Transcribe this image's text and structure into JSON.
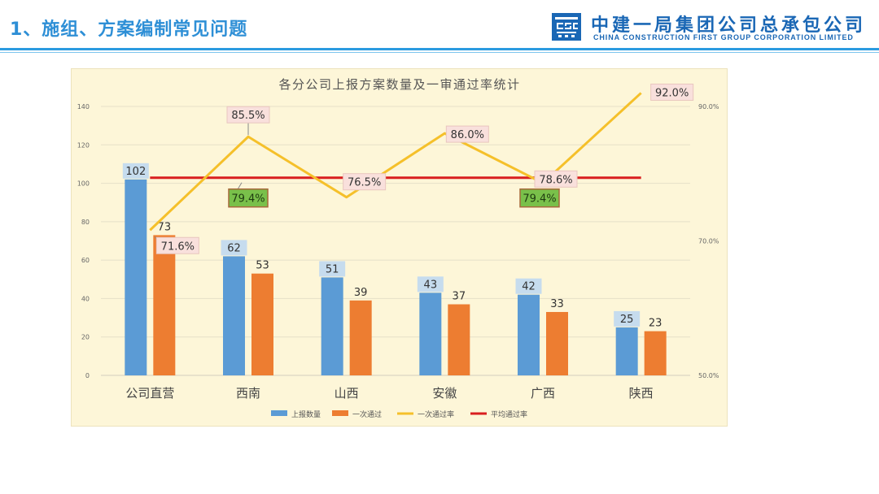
{
  "header": {
    "title": "1、施组、方案编制常见问题",
    "brand_cn": "中建一局集团公司总承包公司",
    "brand_en": "CHINA CONSTRUCTION FIRST GROUP CORPORATION LIMITED",
    "logo_icon": "cscec-logo-icon"
  },
  "colors": {
    "accent": "#2b9be0",
    "brand": "#1a67b5",
    "bar_reported": "#5b9bd5",
    "bar_passed": "#ed7d31",
    "line_rate": "#f5c02a",
    "line_avg": "#d91f1f"
  },
  "chart_data": {
    "type": "bar",
    "title": "各分公司上报方案数量及一审通过率统计",
    "categories": [
      "公司直营",
      "西南",
      "山西",
      "安徽",
      "广西",
      "陕西"
    ],
    "series": [
      {
        "name": "上报数量",
        "values": [
          102,
          62,
          51,
          43,
          42,
          25
        ],
        "axis": "left"
      },
      {
        "name": "一次通过",
        "values": [
          73,
          53,
          39,
          37,
          33,
          23
        ],
        "axis": "left"
      }
    ],
    "line_series": [
      {
        "name": "一次通过率",
        "values": [
          71.6,
          85.5,
          76.5,
          86.0,
          78.6,
          92.0
        ],
        "labels": [
          "71.6%",
          "85.5%",
          "76.5%",
          "86.0%",
          "78.6%",
          "92.0%"
        ],
        "axis": "right"
      },
      {
        "name": "平均通过率",
        "value": 79.4,
        "label": "79.4%",
        "callouts": [
          "79.4%",
          "79.4%"
        ],
        "axis": "right"
      }
    ],
    "y_left": {
      "min": 0,
      "max": 140,
      "ticks": [
        0,
        20,
        40,
        60,
        80,
        100,
        120,
        140
      ]
    },
    "y_right": {
      "min": 50,
      "max": 90,
      "ticks": [
        50,
        70,
        90
      ],
      "tick_labels": [
        "50.0%",
        "70.0%",
        "90.0%"
      ]
    },
    "legend": [
      "上报数量",
      "一次通过",
      "一次通过率",
      "平均通过率"
    ],
    "legend_position": "bottom",
    "grid": true
  }
}
